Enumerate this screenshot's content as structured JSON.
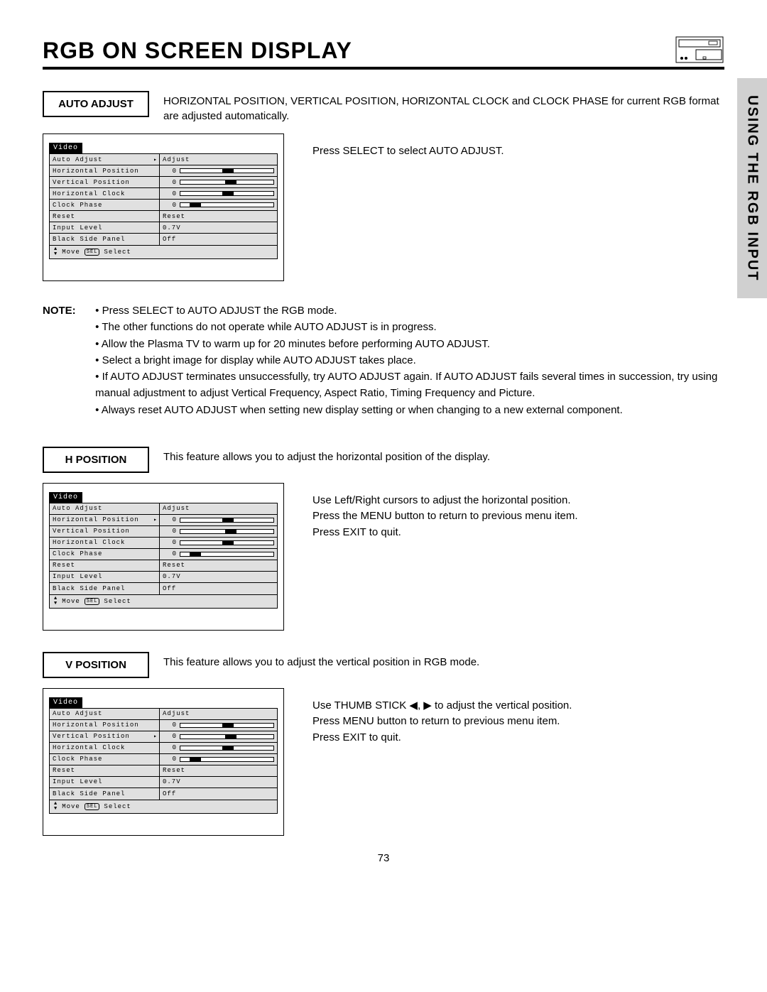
{
  "page": {
    "title": "RGB ON SCREEN DISPLAY",
    "side_tab": "USING THE RGB INPUT",
    "page_number": "73"
  },
  "osd": {
    "tab": "Video",
    "menu_items": [
      "Auto Adjust",
      "Horizontal Position",
      "Vertical Position",
      "Horizontal Clock",
      "Clock Phase",
      "Reset",
      "Input Level",
      "Black Side Panel"
    ],
    "values": {
      "adjust_label": "Adjust",
      "zero": "0",
      "reset": "Reset",
      "input_level": "0.7V",
      "black_side": "Off"
    },
    "slider_fills": [
      45,
      48,
      45,
      10
    ],
    "footer_move": "Move",
    "footer_sel": "SEL",
    "footer_select": "Select",
    "arrows": "▲▼"
  },
  "sections": {
    "auto_adjust": {
      "label": "AUTO ADJUST",
      "desc": "HORIZONTAL POSITION, VERTICAL POSITION, HORIZONTAL CLOCK and CLOCK PHASE for current RGB format are adjusted automatically.",
      "instruction": "Press SELECT to select AUTO ADJUST.",
      "selected_index": 0
    },
    "h_position": {
      "label": "H POSITION",
      "desc": "This feature allows you to adjust the horizontal position of the display.",
      "instruction": "Use Left/Right cursors to adjust the horizontal position.\nPress the MENU button to return to previous menu item.\nPress EXIT to quit.",
      "selected_index": 1
    },
    "v_position": {
      "label": "V POSITION",
      "desc": "This feature allows you to adjust the vertical position in RGB mode.",
      "instruction": "Use THUMB STICK ◀, ▶ to adjust the vertical position.\nPress MENU button to return to previous menu item.\nPress EXIT to quit.",
      "selected_index": 2
    }
  },
  "note": {
    "label": "NOTE:",
    "items": [
      "Press SELECT to AUTO ADJUST the RGB mode.",
      "The other functions do not operate while AUTO ADJUST is in progress.",
      "Allow the Plasma TV to warm up for 20 minutes before performing AUTO ADJUST.",
      "Select a bright image for display while AUTO ADJUST takes place.",
      "If AUTO ADJUST terminates unsuccessfully, try AUTO ADJUST again.  If AUTO ADJUST fails several times in succession, try using manual adjustment to adjust Vertical Frequency, Aspect Ratio, Timing Frequency and Picture.",
      "Always reset AUTO ADJUST when setting new display setting or when changing to a new external component."
    ]
  }
}
